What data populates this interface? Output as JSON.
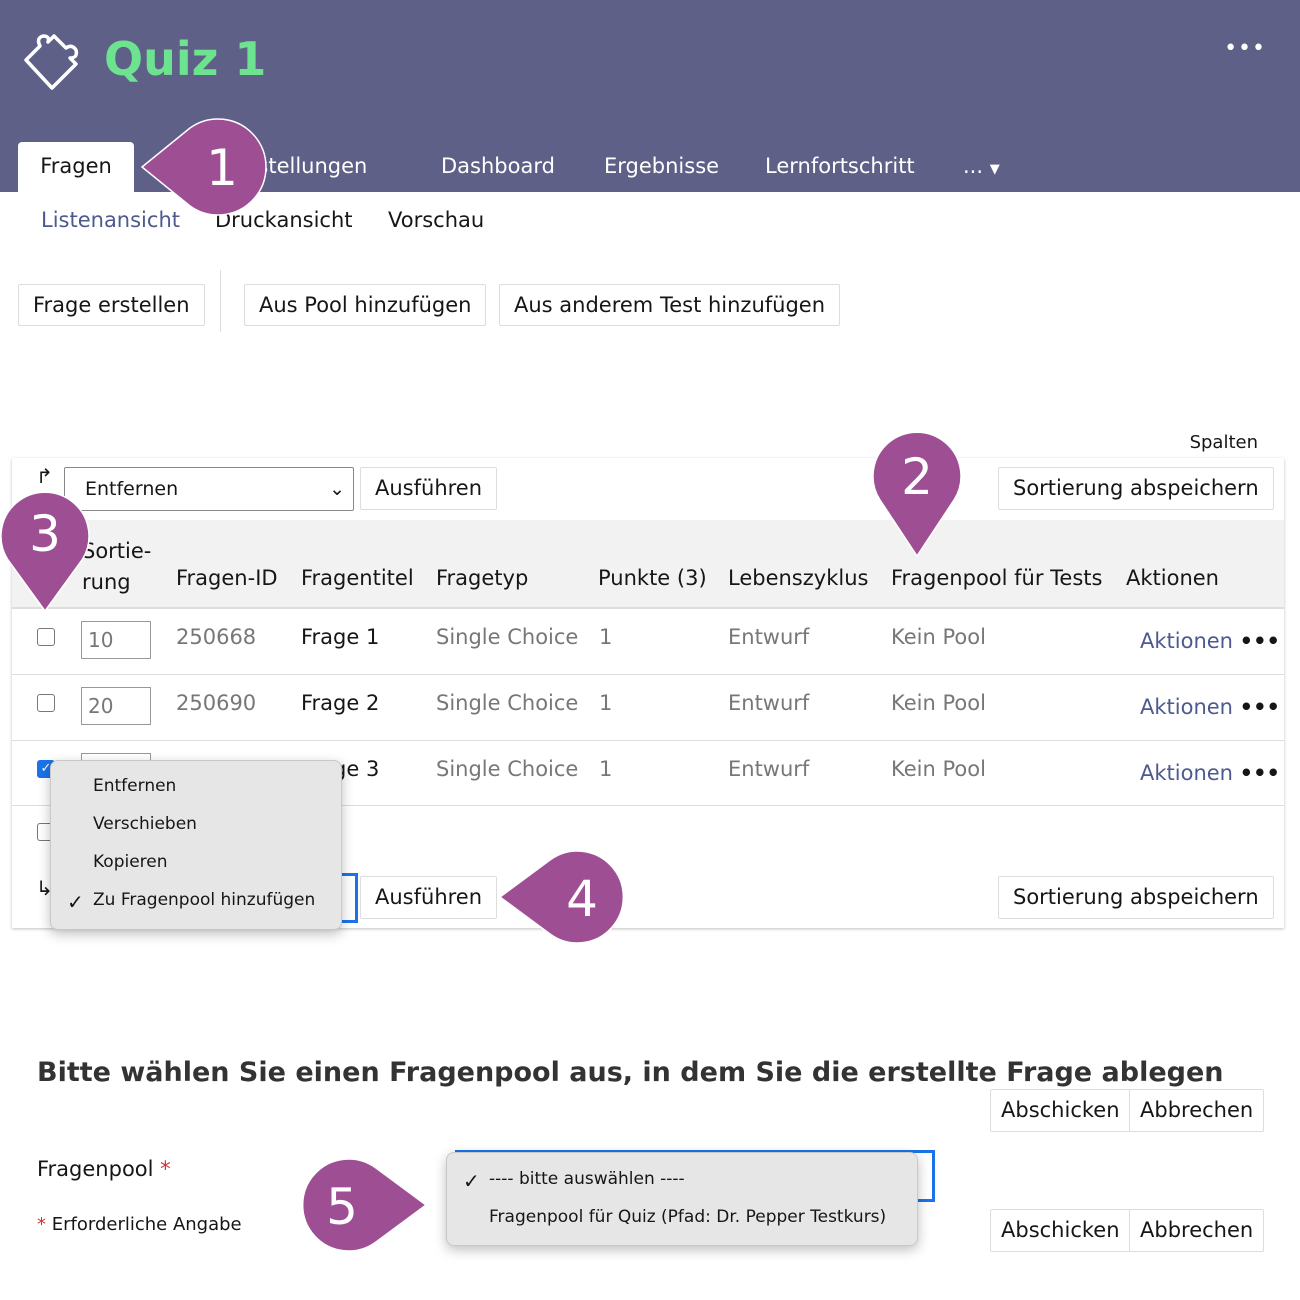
{
  "header": {
    "title": "Quiz 1",
    "more": "•••",
    "colors": {
      "bar": "#5e6087",
      "title": "#6ee38f",
      "callout": "#9e4f94",
      "link": "#4c5a8f"
    }
  },
  "tabs": [
    "Fragen",
    "Einstellungen",
    "Dashboard",
    "Ergebnisse",
    "Lernfortschritt",
    "..."
  ],
  "subtabs": [
    "Listenansicht",
    "Druckansicht",
    "Vorschau"
  ],
  "toolbar": [
    "Frage erstellen",
    "Aus Pool hinzufügen",
    "Aus anderem Test hinzufügen"
  ],
  "table": {
    "columns_label": "Spalten",
    "action_select": "Entfernen",
    "run": "Ausführen",
    "save_sort": "Sortierung abspeichern",
    "headers": [
      "Sortie-\nrung",
      "Fragen-ID",
      "Fragentitel",
      "Fragetyp",
      "Punkte (3)",
      "Lebenszyklus",
      "Fragenpool für Tests",
      "Aktionen"
    ],
    "rows": [
      {
        "checked": false,
        "sort": "10",
        "id": "250668",
        "title": "Frage 1",
        "type": "Single Choice",
        "points": "1",
        "life": "Entwurf",
        "pool": "Kein Pool",
        "actions": "Aktionen"
      },
      {
        "checked": false,
        "sort": "20",
        "id": "250690",
        "title": "Frage 2",
        "type": "Single Choice",
        "points": "1",
        "life": "Entwurf",
        "pool": "Kein Pool",
        "actions": "Aktionen"
      },
      {
        "checked": true,
        "sort": "",
        "id": "",
        "title": "Frage 3",
        "type": "Single Choice",
        "points": "1",
        "life": "Entwurf",
        "pool": "Kein Pool",
        "actions": "Aktionen"
      }
    ]
  },
  "action_menu": {
    "items": [
      "Entfernen",
      "Verschieben",
      "Kopieren",
      "Zu Fragenpool hinzufügen"
    ],
    "selected": 3
  },
  "form": {
    "title": "Bitte wählen Sie einen Fragenpool aus, in dem Sie die erstellte Frage ablegen",
    "submit": "Abschicken",
    "cancel": "Abbrechen",
    "field_label": "Fragenpool",
    "required_note": "Erforderliche Angabe",
    "options": [
      "---- bitte auswählen ----",
      "Fragenpool für Quiz (Pfad: Dr. Pepper Testkurs)"
    ],
    "selected": 0
  },
  "callouts": [
    "1",
    "2",
    "3",
    "4",
    "5"
  ]
}
